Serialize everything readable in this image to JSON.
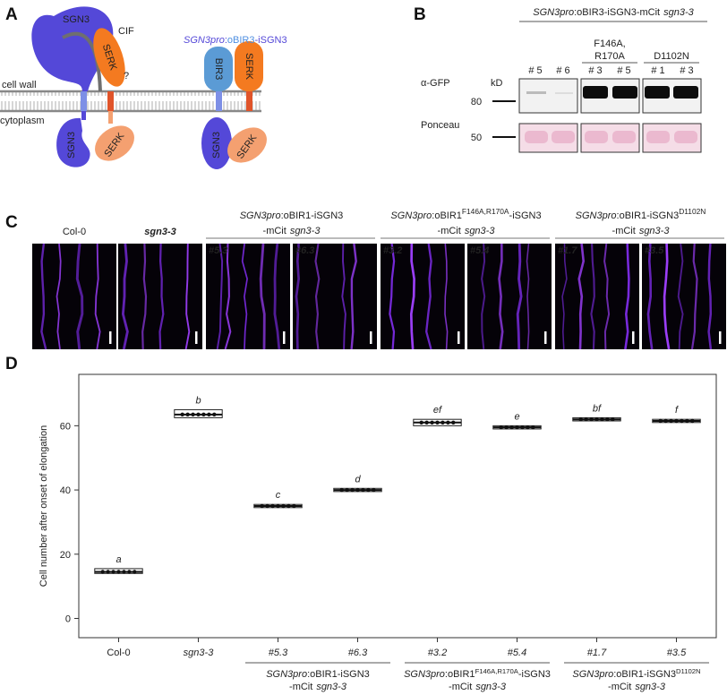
{
  "panel_a": {
    "label": "A",
    "title": [
      {
        "text": "SGN3pro",
        "style": "italic",
        "color": "#5448d8"
      },
      {
        "text": ":",
        "style": "normal",
        "color": "#5448d8"
      },
      {
        "text": "oBIR3",
        "style": "normal",
        "color": "#4f8fe0"
      },
      {
        "text": "-iSGN3",
        "style": "normal",
        "color": "#5448d8"
      }
    ],
    "cif": "CIF",
    "question": "?",
    "cell_wall": "cell wall",
    "cytoplasm": "cytoplasm",
    "proteins": [
      "SGN3",
      "SERK",
      "SGN3",
      "SERK",
      "BIR3",
      "SERK",
      "SGN3",
      "SERK"
    ]
  },
  "panel_b": {
    "label": "B",
    "header": [
      {
        "text": "SGN3pro",
        "style": "italic"
      },
      {
        "text": ":oBIR3-iSGN3-mCit",
        "style": "normal"
      },
      {
        "text": "sgn3-3",
        "style": "italic"
      }
    ],
    "subgroups": [
      [
        "F146A,",
        "R170A"
      ],
      [
        "D1102N"
      ]
    ],
    "lanes": [
      "# 5",
      "# 6",
      "# 3",
      "# 5",
      "# 1",
      "# 3"
    ],
    "antibody": "α-GFP",
    "unit": "kD",
    "marker_top": "80",
    "loading": "Ponceau",
    "marker_bottom": "50"
  },
  "panel_c": {
    "label": "C",
    "headers": [
      "Col-0",
      "sgn3-3"
    ],
    "samples": [
      "#5.3",
      "#6.3",
      "#3.2",
      "#5.4",
      "#1.7",
      "#3.5"
    ],
    "groups": [
      {
        "line1": [
          {
            "text": "SGN3pro",
            "style": "italic"
          },
          {
            "text": ":oBIR1-iSGN3",
            "style": "normal"
          }
        ],
        "line2": [
          {
            "text": "-mCit",
            "style": "normal"
          },
          {
            "text": "sgn3-3",
            "style": "italic"
          }
        ]
      },
      {
        "line1": [
          {
            "text": "SGN3pro",
            "style": "italic"
          },
          {
            "text": ":oBIR1",
            "style": "normal"
          },
          {
            "text": "F146A,R170A",
            "style": "sup"
          },
          {
            "text": "-iSGN3",
            "style": "normal"
          }
        ],
        "line2": [
          {
            "text": "-mCit",
            "style": "normal"
          },
          {
            "text": "sgn3-3",
            "style": "italic"
          }
        ]
      },
      {
        "line1": [
          {
            "text": "SGN3pro",
            "style": "italic"
          },
          {
            "text": ":oBIR1-iSGN3",
            "style": "normal"
          },
          {
            "text": "D1102N",
            "style": "sup"
          }
        ],
        "line2": [
          {
            "text": "-mCit",
            "style": "normal"
          },
          {
            "text": "sgn3-3",
            "style": "italic"
          }
        ]
      }
    ]
  },
  "chart_data": {
    "type": "box",
    "label": "D",
    "y_label": "Cell number after onset of elongation",
    "categories": [
      "Col-0",
      "sgn3-3",
      "#5.3",
      "#6.3",
      "#3.2",
      "#5.4",
      "#1.7",
      "#3.5"
    ],
    "medians": [
      14.5,
      63.5,
      35,
      40,
      61,
      59.5,
      62,
      61.5
    ],
    "q1": [
      14,
      62.5,
      34.5,
      39.5,
      60,
      59,
      61.5,
      61
    ],
    "q3": [
      15.5,
      65,
      35.5,
      40.5,
      62,
      60,
      62.5,
      62
    ],
    "letters": [
      "a",
      "b",
      "c",
      "d",
      "ef",
      "e",
      "bf",
      "f"
    ],
    "ylim": [
      -6,
      76
    ],
    "yticks": [
      0,
      20,
      40,
      60
    ],
    "box_color": "#ffffff",
    "groups": [
      {
        "line1": [
          {
            "text": "SGN3pro",
            "style": "italic"
          },
          {
            "text": ":oBIR1-iSGN3",
            "style": "normal"
          }
        ],
        "line2": [
          {
            "text": "-mCit",
            "style": "normal"
          },
          {
            "text": "sgn3-3",
            "style": "italic"
          }
        ]
      },
      {
        "line1": [
          {
            "text": "SGN3pro",
            "style": "italic"
          },
          {
            "text": ":oBIR1",
            "style": "normal"
          },
          {
            "text": "F146A,R170A",
            "style": "sup"
          },
          {
            "text": "-iSGN3",
            "style": "normal"
          }
        ],
        "line2": [
          {
            "text": "-mCit",
            "style": "normal"
          },
          {
            "text": "sgn3-3",
            "style": "italic"
          }
        ]
      },
      {
        "line1": [
          {
            "text": "SGN3pro",
            "style": "italic"
          },
          {
            "text": ":oBIR1-iSGN3",
            "style": "normal"
          },
          {
            "text": "D1102N",
            "style": "sup"
          }
        ],
        "line2": [
          {
            "text": "-mCit",
            "style": "normal"
          },
          {
            "text": "sgn3-3",
            "style": "italic"
          }
        ]
      }
    ]
  }
}
